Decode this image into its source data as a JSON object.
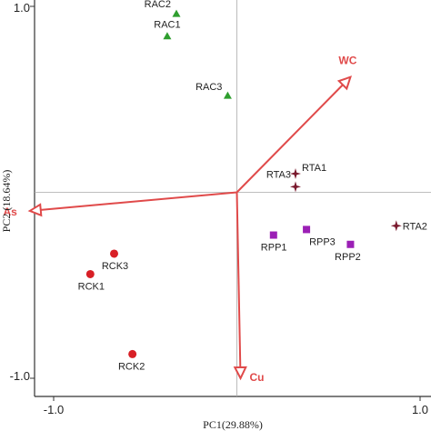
{
  "chart_data": {
    "type": "scatter",
    "subtype": "pca-biplot",
    "xlabel": "PC1(29.88%)",
    "ylabel": "PC2 (18.64%)",
    "xlim": [
      -1.0,
      1.0
    ],
    "ylim": [
      -1.0,
      1.0
    ],
    "x_ticks": [
      "-1.0",
      "1.0"
    ],
    "y_ticks": [
      "1.0",
      "-1.0"
    ],
    "zero_lines": true,
    "colors": {
      "RAC": "#2e9e2e",
      "RTA": "#7a1a2e",
      "RPP": "#9b1fb5",
      "RCK": "#d81f26",
      "vector": "#e04a4a"
    },
    "groups": [
      {
        "group": "RAC",
        "marker": "triangle",
        "points": [
          {
            "label": "RAC2",
            "x": -0.33,
            "y": 0.96
          },
          {
            "label": "RAC1",
            "x": -0.38,
            "y": 0.84
          },
          {
            "label": "RAC3",
            "x": -0.05,
            "y": 0.52
          }
        ]
      },
      {
        "group": "RTA",
        "marker": "star",
        "points": [
          {
            "label": "RTA1",
            "x": 0.32,
            "y": 0.1
          },
          {
            "label": "RTA3",
            "x": 0.32,
            "y": 0.03
          },
          {
            "label": "RTA2",
            "x": 0.87,
            "y": -0.18
          }
        ]
      },
      {
        "group": "RPP",
        "marker": "square",
        "points": [
          {
            "label": "RPP1",
            "x": 0.2,
            "y": -0.23
          },
          {
            "label": "RPP3",
            "x": 0.38,
            "y": -0.2
          },
          {
            "label": "RPP2",
            "x": 0.62,
            "y": -0.28
          }
        ]
      },
      {
        "group": "RCK",
        "marker": "circle",
        "points": [
          {
            "label": "RCK3",
            "x": -0.67,
            "y": -0.33
          },
          {
            "label": "RCK1",
            "x": -0.8,
            "y": -0.44
          },
          {
            "label": "RCK2",
            "x": -0.57,
            "y": -0.87
          }
        ]
      }
    ],
    "vectors": [
      {
        "label": "WC",
        "x": 0.62,
        "y": 0.62
      },
      {
        "label": "As",
        "x": -1.13,
        "y": -0.1
      },
      {
        "label": "Cu",
        "x": 0.02,
        "y": -1.0
      }
    ]
  }
}
